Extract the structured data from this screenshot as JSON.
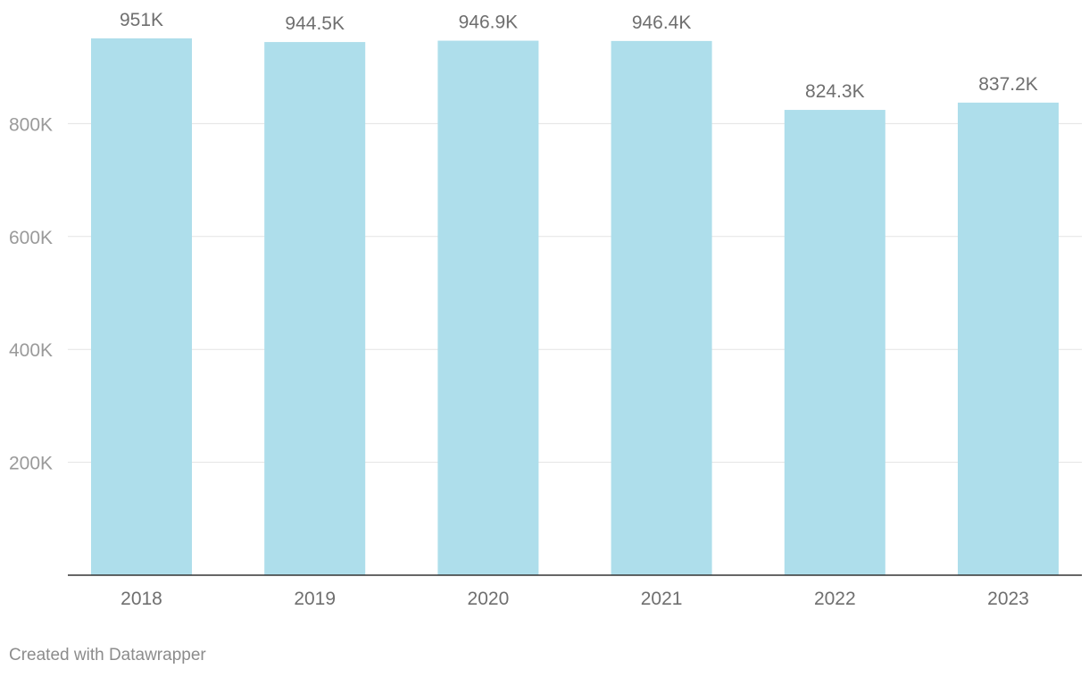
{
  "chart_data": {
    "type": "bar",
    "categories": [
      "2018",
      "2019",
      "2020",
      "2021",
      "2022",
      "2023"
    ],
    "values": [
      951000,
      944500,
      946900,
      946400,
      824300,
      837200
    ],
    "value_labels": [
      "951K",
      "944.5K",
      "946.9K",
      "946.4K",
      "824.3K",
      "837.2K"
    ],
    "y_ticks": [
      200000,
      400000,
      600000,
      800000
    ],
    "y_tick_labels": [
      "200K",
      "400K",
      "600K",
      "800K"
    ],
    "ylim": [
      0,
      1000000
    ],
    "grid": true,
    "bar_color": "#aedeeb",
    "title": "",
    "xlabel": "",
    "ylabel": ""
  },
  "footer": {
    "credit": "Created with Datawrapper"
  }
}
